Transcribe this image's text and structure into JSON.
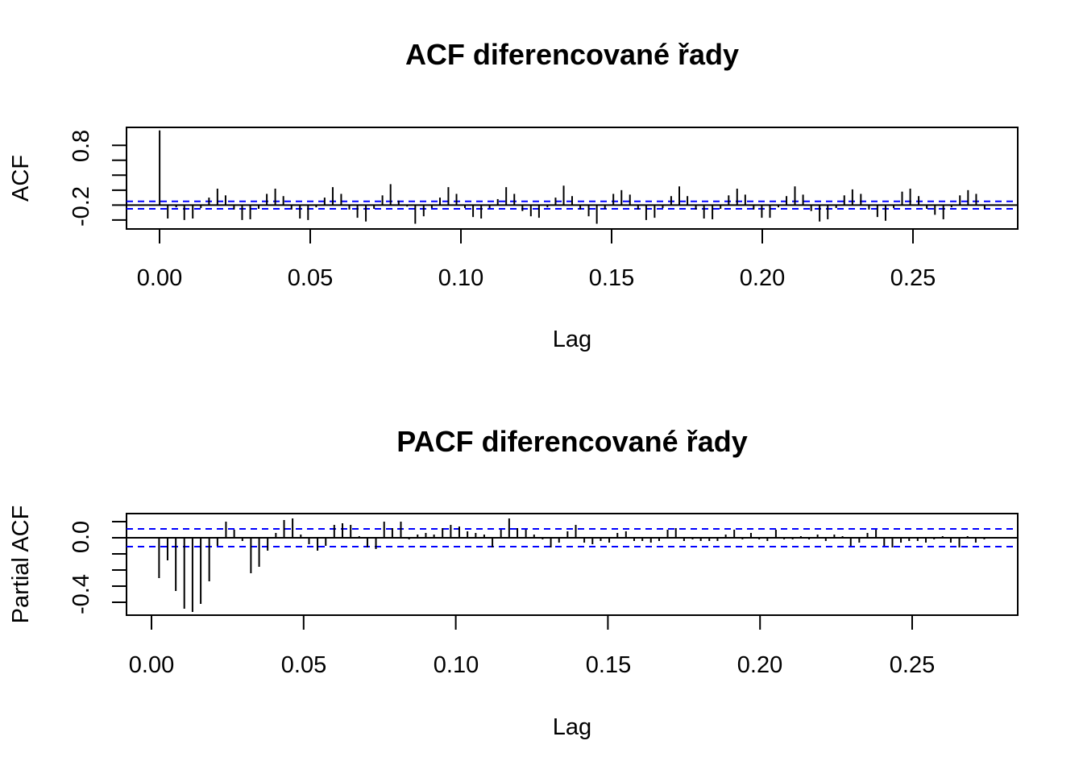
{
  "chart_data": [
    {
      "type": "bar",
      "title": "ACF diferencované řady",
      "xlabel": "Lag",
      "ylabel": "ACF",
      "x_ticks": [
        "0.00",
        "0.05",
        "0.10",
        "0.15",
        "0.20",
        "0.25"
      ],
      "y_ticks": [
        "-0.2",
        "0.8"
      ],
      "xlim": [
        -0.011,
        0.285
      ],
      "ylim": [
        -0.32,
        1.04
      ],
      "conf_limit": 0.05,
      "colors": {
        "bars": "#000000",
        "confidence": "#0000ff",
        "axes": "#000000"
      },
      "lags": [
        0.0,
        0.0027,
        0.0055,
        0.0082,
        0.011,
        0.0137,
        0.0164,
        0.0192,
        0.0219,
        0.0247,
        0.0274,
        0.0301,
        0.0329,
        0.0356,
        0.0384,
        0.0411,
        0.0438,
        0.0466,
        0.0493,
        0.052,
        0.0548,
        0.0575,
        0.0603,
        0.063,
        0.0657,
        0.0685,
        0.0712,
        0.074,
        0.0767,
        0.0794,
        0.0822,
        0.0849,
        0.0877,
        0.0904,
        0.0931,
        0.0959,
        0.0986,
        0.1014,
        0.1041,
        0.1068,
        0.1096,
        0.1123,
        0.1151,
        0.1178,
        0.1205,
        0.1233,
        0.126,
        0.1288,
        0.1315,
        0.1342,
        0.137,
        0.1397,
        0.1425,
        0.1452,
        0.1479,
        0.1507,
        0.1534,
        0.1562,
        0.1589,
        0.1616,
        0.1644,
        0.1671,
        0.1699,
        0.1726,
        0.1753,
        0.1781,
        0.1808,
        0.1836,
        0.1863,
        0.189,
        0.1918,
        0.1945,
        0.1973,
        0.2,
        0.2027,
        0.2055,
        0.2082,
        0.211,
        0.2137,
        0.2164,
        0.2192,
        0.2219,
        0.2247,
        0.2274,
        0.2301,
        0.2329,
        0.2356,
        0.2384,
        0.2411,
        0.2438,
        0.2466,
        0.2493,
        0.2521,
        0.2548,
        0.2575,
        0.2603,
        0.263,
        0.2658,
        0.2685,
        0.2712,
        0.274
      ],
      "values": [
        1.0,
        -0.18,
        -0.03,
        -0.2,
        -0.18,
        -0.04,
        0.1,
        0.22,
        0.13,
        -0.06,
        -0.2,
        -0.19,
        -0.05,
        0.15,
        0.22,
        0.12,
        -0.06,
        -0.18,
        -0.2,
        -0.03,
        0.1,
        0.24,
        0.15,
        -0.06,
        -0.17,
        -0.22,
        -0.05,
        0.13,
        0.28,
        0.06,
        -0.02,
        -0.25,
        -0.15,
        -0.04,
        0.1,
        0.24,
        0.15,
        -0.04,
        -0.16,
        -0.18,
        -0.04,
        0.08,
        0.24,
        0.15,
        -0.08,
        -0.15,
        -0.17,
        -0.03,
        0.1,
        0.26,
        0.12,
        -0.06,
        -0.15,
        -0.25,
        -0.05,
        0.15,
        0.2,
        0.14,
        -0.06,
        -0.2,
        -0.17,
        -0.04,
        0.12,
        0.25,
        0.12,
        -0.06,
        -0.18,
        -0.19,
        -0.05,
        0.13,
        0.22,
        0.14,
        -0.06,
        -0.17,
        -0.17,
        -0.03,
        0.12,
        0.25,
        0.14,
        -0.08,
        -0.22,
        -0.19,
        -0.04,
        0.13,
        0.21,
        0.15,
        -0.06,
        -0.16,
        -0.21,
        -0.04,
        0.18,
        0.22,
        0.12,
        -0.05,
        -0.13,
        -0.19,
        -0.03,
        0.13,
        0.2,
        0.15,
        -0.05
      ]
    },
    {
      "type": "bar",
      "title": "PACF diferencované řady",
      "xlabel": "Lag",
      "ylabel": "Partial ACF",
      "x_ticks": [
        "0.00",
        "0.05",
        "0.10",
        "0.15",
        "0.20",
        "0.25"
      ],
      "y_ticks": [
        "-0.4",
        "0.0"
      ],
      "xlim": [
        -0.008,
        0.285
      ],
      "ylim": [
        -0.48,
        0.15
      ],
      "conf_limit": 0.055,
      "colors": {
        "bars": "#000000",
        "confidence": "#0000ff",
        "axes": "#000000"
      },
      "lags": [
        0.0027,
        0.0055,
        0.0082,
        0.011,
        0.0137,
        0.0164,
        0.0192,
        0.0219,
        0.0247,
        0.0274,
        0.0301,
        0.0329,
        0.0356,
        0.0384,
        0.0411,
        0.0438,
        0.0466,
        0.0493,
        0.052,
        0.0548,
        0.0575,
        0.0603,
        0.063,
        0.0657,
        0.0685,
        0.0712,
        0.074,
        0.0767,
        0.0794,
        0.0822,
        0.0849,
        0.0877,
        0.0904,
        0.0931,
        0.0959,
        0.0986,
        0.1014,
        0.1041,
        0.1068,
        0.1096,
        0.1123,
        0.1151,
        0.1178,
        0.1205,
        0.1233,
        0.126,
        0.1288,
        0.1315,
        0.1342,
        0.137,
        0.1397,
        0.1425,
        0.1452,
        0.1479,
        0.1507,
        0.1534,
        0.1562,
        0.1589,
        0.1616,
        0.1644,
        0.1671,
        0.1699,
        0.1726,
        0.1753,
        0.1781,
        0.1808,
        0.1836,
        0.1863,
        0.189,
        0.1918,
        0.1945,
        0.1973,
        0.2,
        0.2027,
        0.2055,
        0.2082,
        0.211,
        0.2137,
        0.2164,
        0.2192,
        0.2219,
        0.2247,
        0.2274,
        0.2301,
        0.2329,
        0.2356,
        0.2384,
        0.2411,
        0.2438,
        0.2466,
        0.2493,
        0.2521,
        0.2548,
        0.2575,
        0.2603,
        0.263,
        0.2658,
        0.2685,
        0.2712,
        0.274
      ],
      "values": [
        -0.25,
        -0.14,
        -0.33,
        -0.44,
        -0.46,
        -0.41,
        -0.27,
        -0.05,
        0.1,
        0.05,
        -0.02,
        -0.22,
        -0.18,
        -0.08,
        0.03,
        0.11,
        0.12,
        0.02,
        -0.04,
        -0.08,
        -0.05,
        0.08,
        0.09,
        0.08,
        0.01,
        -0.06,
        -0.07,
        0.1,
        0.06,
        0.1,
        -0.01,
        0.02,
        0.03,
        0.02,
        0.06,
        0.08,
        0.07,
        0.04,
        0.03,
        0.02,
        -0.06,
        0.05,
        0.12,
        0.06,
        0.05,
        0.02,
        -0.01,
        -0.06,
        -0.03,
        0.04,
        0.08,
        -0.03,
        -0.04,
        -0.02,
        -0.03,
        0.03,
        0.04,
        -0.02,
        -0.02,
        -0.03,
        -0.02,
        0.05,
        0.06,
        -0.02,
        -0.01,
        -0.02,
        -0.02,
        -0.02,
        0.02,
        0.05,
        -0.01,
        0.03,
        -0.01,
        -0.02,
        0.05,
        -0.01,
        -0.01,
        0.01,
        -0.01,
        0.02,
        -0.02,
        0.02,
        0.01,
        -0.05,
        -0.03,
        0.03,
        0.05,
        -0.05,
        -0.06,
        -0.03,
        -0.02,
        -0.02,
        -0.03,
        -0.01,
        0.01,
        -0.03,
        -0.06,
        0.01,
        -0.03,
        -0.01
      ]
    }
  ]
}
